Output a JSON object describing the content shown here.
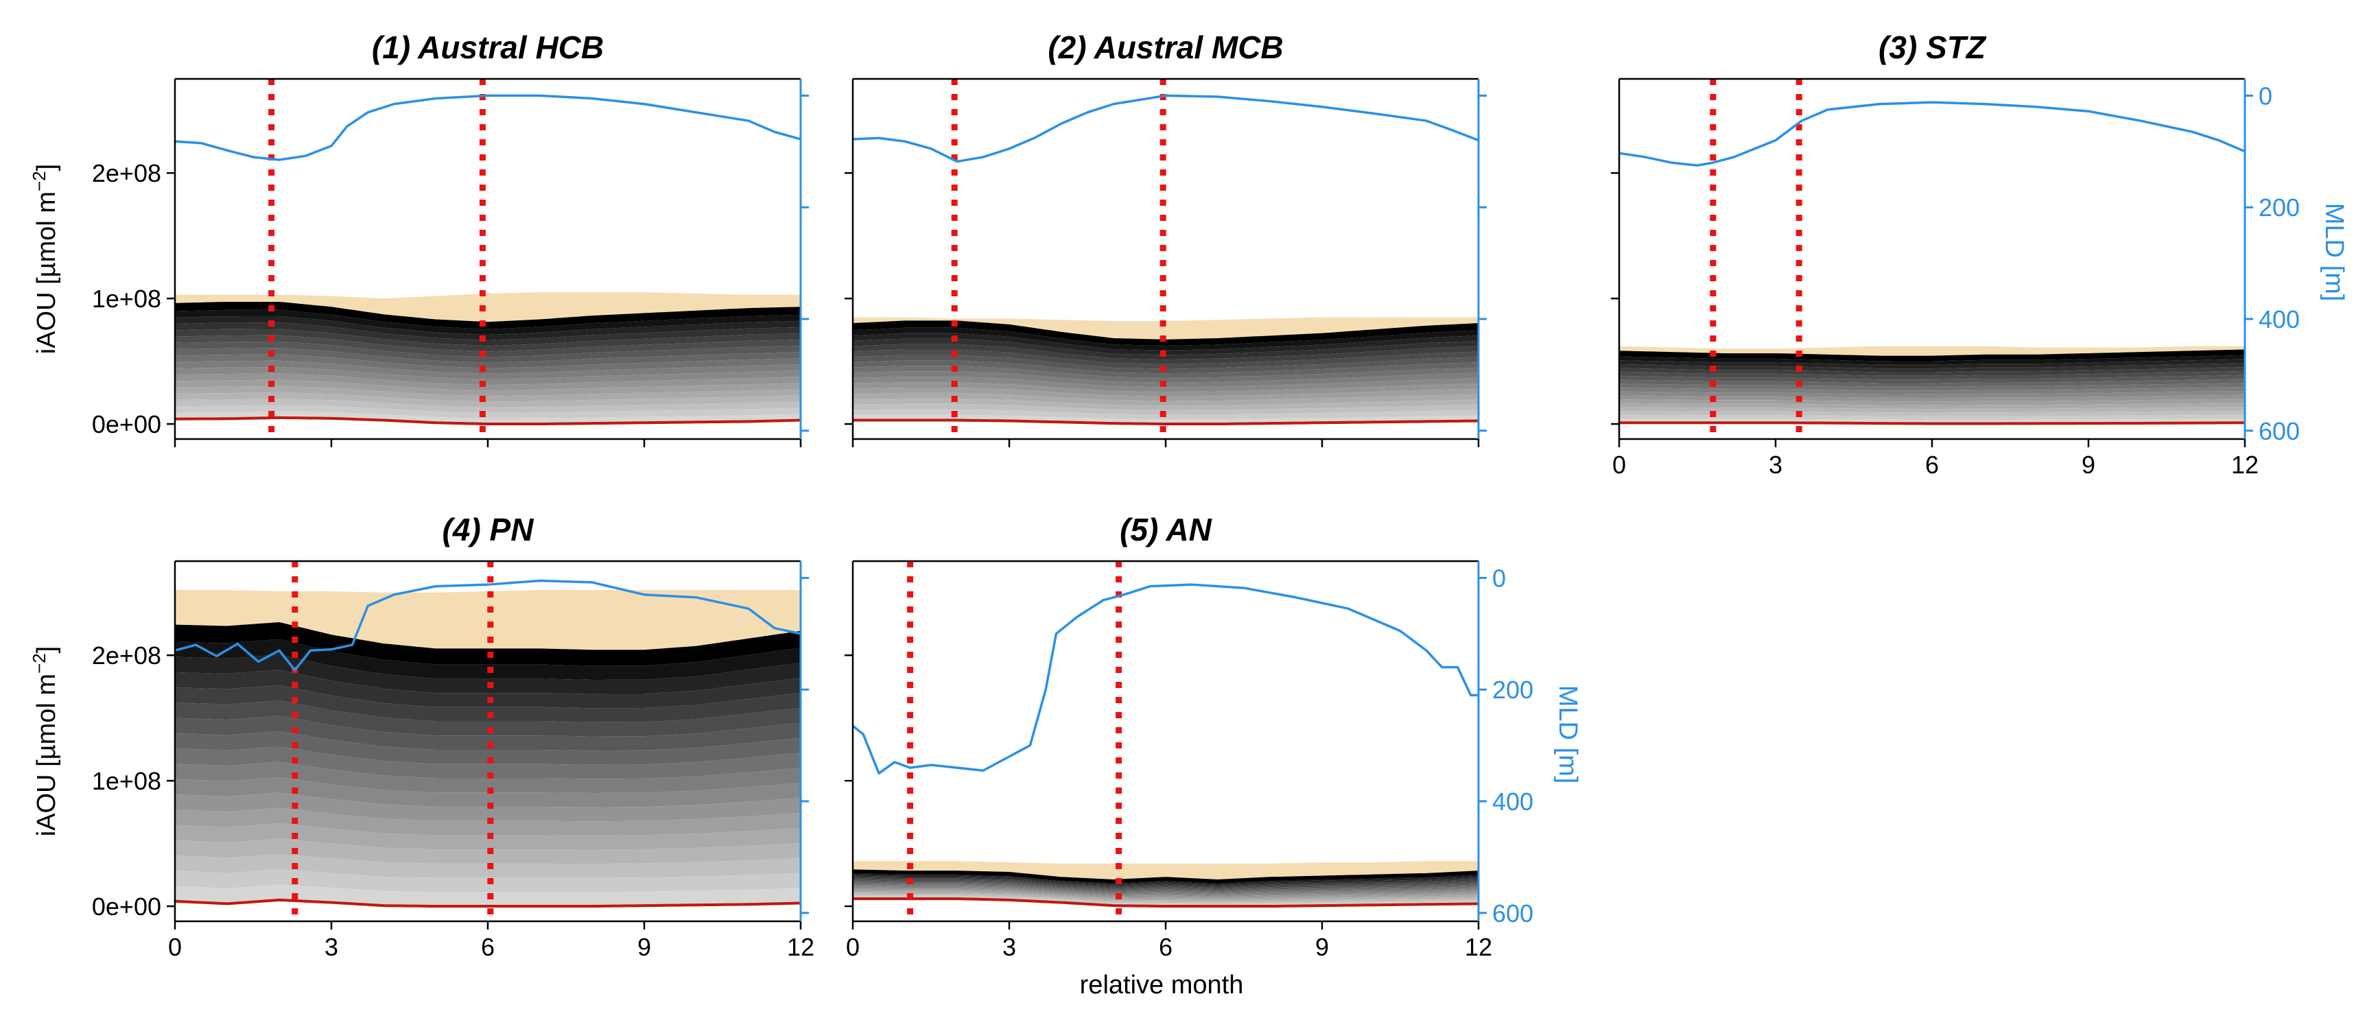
{
  "colors": {
    "mld": "#2b90e6",
    "phases": "#ee1111",
    "envelope": "#f5ddb3",
    "baseline": "#c0190f",
    "stack_dark": "#000000",
    "stack_light": "#d6d6d6",
    "axes": "#000000"
  },
  "figure": {
    "xlabel": "relative month",
    "ylabel_left": "iAOU",
    "ylabel_left_units": "[µmol m",
    "ylabel_left_exp": "−2",
    "ylabel_left_close": "]",
    "ylabel_right": "MLD [m]"
  },
  "chart_data": [
    {
      "type": "area",
      "title": "(1) Austral HCB",
      "xlim": [
        0,
        12
      ],
      "xticks": [
        "0",
        "3",
        "6",
        "9",
        "12"
      ],
      "show_xticklabels": false,
      "ylim": [
        -12000000.0,
        275000000.0
      ],
      "yticks": [
        "0e+00",
        "1e+08",
        "2e+08"
      ],
      "yticks_values": [
        0,
        100000000.0,
        200000000.0
      ],
      "show_yticklabels": true,
      "show_ylabel": true,
      "mld_lim": [
        615,
        -30
      ],
      "mld_ticks": [
        0,
        200,
        400,
        600
      ],
      "show_mld_ticklabels": false,
      "show_mld_label": false,
      "phase_lines": [
        1.85,
        5.9
      ],
      "x": [
        0,
        1,
        2,
        3,
        4,
        5,
        6,
        7,
        8,
        9,
        10,
        11,
        12
      ],
      "envelope": [
        103000000.0,
        103000000.0,
        103000000.0,
        102000000.0,
        100000000.0,
        102000000.0,
        104000000.0,
        105000000.0,
        105000000.0,
        105000000.0,
        104000000.0,
        103000000.0,
        103000000.0
      ],
      "stack_top": [
        95000000.0,
        96000000.0,
        96000000.0,
        92000000.0,
        86000000.0,
        82000000.0,
        80000000.0,
        82000000.0,
        85000000.0,
        87000000.0,
        89000000.0,
        91000000.0,
        92000000.0
      ],
      "baseline": [
        4000000.0,
        4200000.0,
        5000000.0,
        4500000.0,
        3000000.0,
        1000000.0,
        0,
        0,
        500000.0,
        1000000.0,
        1500000.0,
        2000000.0,
        3000000.0
      ],
      "mld_x": [
        0,
        0.5,
        1,
        1.5,
        2,
        2.5,
        3,
        3.3,
        3.7,
        4.2,
        5,
        6,
        7,
        8,
        9,
        10,
        11,
        11.5,
        12
      ],
      "mld": [
        82,
        85,
        98,
        110,
        115,
        108,
        90,
        55,
        30,
        15,
        5,
        0,
        0,
        5,
        15,
        30,
        45,
        65,
        78
      ]
    },
    {
      "type": "area",
      "title": "(2) Austral MCB",
      "xlim": [
        0,
        12
      ],
      "xticks": [
        "0",
        "3",
        "6",
        "9",
        "12"
      ],
      "show_xticklabels": false,
      "ylim": [
        -12000000.0,
        275000000.0
      ],
      "yticks": [
        "0e+00",
        "1e+08",
        "2e+08"
      ],
      "yticks_values": [
        0,
        100000000.0,
        200000000.0
      ],
      "show_yticklabels": false,
      "show_ylabel": false,
      "mld_lim": [
        615,
        -30
      ],
      "mld_ticks": [
        0,
        200,
        400,
        600
      ],
      "show_mld_ticklabels": false,
      "show_mld_label": false,
      "phase_lines": [
        1.95,
        5.95
      ],
      "x": [
        0,
        1,
        2,
        3,
        4,
        5,
        6,
        7,
        8,
        9,
        10,
        11,
        12
      ],
      "envelope": [
        85000000.0,
        85000000.0,
        84000000.0,
        84000000.0,
        83000000.0,
        82000000.0,
        82000000.0,
        83000000.0,
        84000000.0,
        85000000.0,
        85000000.0,
        85000000.0,
        85000000.0
      ],
      "stack_top": [
        79000000.0,
        81000000.0,
        81000000.0,
        78000000.0,
        72000000.0,
        67000000.0,
        66000000.0,
        67000000.0,
        69000000.0,
        71000000.0,
        74000000.0,
        77000000.0,
        79000000.0
      ],
      "baseline": [
        3000000.0,
        3000000.0,
        3000000.0,
        2500000.0,
        1500000.0,
        500000.0,
        0,
        0,
        500000.0,
        1000000.0,
        1500000.0,
        2000000.0,
        2500000.0
      ],
      "mld_x": [
        0,
        0.5,
        1,
        1.5,
        2,
        2.5,
        3,
        3.5,
        4,
        4.5,
        5,
        6,
        7,
        8,
        9,
        10,
        11,
        11.5,
        12
      ],
      "mld": [
        78,
        76,
        82,
        95,
        118,
        110,
        95,
        75,
        50,
        30,
        15,
        0,
        2,
        10,
        20,
        32,
        45,
        62,
        80
      ]
    },
    {
      "type": "area",
      "title": "(3) STZ",
      "xlim": [
        0,
        12
      ],
      "xticks": [
        "0",
        "3",
        "6",
        "9",
        "12"
      ],
      "show_xticklabels": true,
      "ylim": [
        -12000000.0,
        275000000.0
      ],
      "yticks": [
        "0e+00",
        "1e+08",
        "2e+08"
      ],
      "yticks_values": [
        0,
        100000000.0,
        200000000.0
      ],
      "show_yticklabels": false,
      "show_ylabel": false,
      "mld_lim": [
        615,
        -30
      ],
      "mld_ticks": [
        0,
        200,
        400,
        600
      ],
      "show_mld_ticklabels": true,
      "show_mld_label": true,
      "phase_lines": [
        1.8,
        3.45
      ],
      "x": [
        0,
        1,
        2,
        3,
        4,
        5,
        6,
        7,
        8,
        9,
        10,
        11,
        12
      ],
      "envelope": [
        62000000.0,
        61000000.0,
        60000000.0,
        60000000.0,
        61000000.0,
        62000000.0,
        62000000.0,
        62000000.0,
        61000000.0,
        61000000.0,
        61000000.0,
        62000000.0,
        62000000.0
      ],
      "stack_top": [
        57000000.0,
        56000000.0,
        55000000.0,
        55000000.0,
        54000000.0,
        53000000.0,
        53000000.0,
        54000000.0,
        54000000.0,
        55000000.0,
        56000000.0,
        57000000.0,
        58000000.0
      ],
      "baseline": [
        1000000.0,
        1000000.0,
        1000000.0,
        1000000.0,
        800000.0,
        500000.0,
        300000.0,
        300000.0,
        400000.0,
        500000.0,
        600000.0,
        800000.0,
        1000000.0
      ],
      "mld_x": [
        0,
        0.5,
        1,
        1.5,
        1.8,
        2.2,
        2.6,
        3,
        3.5,
        4,
        5,
        6,
        7,
        8,
        9,
        10,
        11,
        11.5,
        12
      ],
      "mld": [
        103,
        110,
        120,
        125,
        120,
        110,
        95,
        80,
        45,
        25,
        15,
        12,
        15,
        20,
        28,
        45,
        65,
        80,
        100
      ]
    },
    {
      "type": "area",
      "title": "(4) PN",
      "xlim": [
        0,
        12
      ],
      "xticks": [
        "0",
        "3",
        "6",
        "9",
        "12"
      ],
      "show_xticklabels": true,
      "ylim": [
        -12000000.0,
        275000000.0
      ],
      "yticks": [
        "0e+00",
        "1e+08",
        "2e+08"
      ],
      "yticks_values": [
        0,
        100000000.0,
        200000000.0
      ],
      "show_yticklabels": true,
      "show_ylabel": true,
      "mld_lim": [
        615,
        -30
      ],
      "mld_ticks": [
        0,
        200,
        400,
        600
      ],
      "show_mld_ticklabels": false,
      "show_mld_label": false,
      "phase_lines": [
        2.3,
        6.05
      ],
      "x": [
        0,
        1,
        2,
        3,
        4,
        5,
        6,
        7,
        8,
        9,
        10,
        11,
        12
      ],
      "envelope": [
        252000000.0,
        252000000.0,
        251000000.0,
        251000000.0,
        250000000.0,
        250000000.0,
        251000000.0,
        252000000.0,
        252000000.0,
        252000000.0,
        252000000.0,
        252000000.0,
        252000000.0
      ],
      "stack_top": [
        223000000.0,
        222000000.0,
        225000000.0,
        215000000.0,
        208000000.0,
        204000000.0,
        204000000.0,
        204000000.0,
        203000000.0,
        203000000.0,
        206000000.0,
        212000000.0,
        218000000.0
      ],
      "baseline": [
        4000000.0,
        2000000.0,
        5000000.0,
        3000000.0,
        500000.0,
        0,
        0,
        0,
        0,
        500000.0,
        1000000.0,
        1500000.0,
        2500000.0
      ],
      "mld_x": [
        0,
        0.4,
        0.8,
        1.2,
        1.6,
        2.0,
        2.3,
        2.6,
        3.0,
        3.4,
        3.7,
        4.2,
        5,
        6,
        7,
        8,
        9,
        10,
        11,
        11.5,
        12
      ],
      "mld": [
        130,
        120,
        140,
        118,
        150,
        130,
        165,
        130,
        128,
        120,
        50,
        30,
        15,
        12,
        5,
        8,
        30,
        35,
        55,
        90,
        100
      ]
    },
    {
      "type": "area",
      "title": "(5) AN",
      "xlim": [
        0,
        12
      ],
      "xticks": [
        "0",
        "3",
        "6",
        "9",
        "12"
      ],
      "show_xticklabels": true,
      "ylim": [
        -12000000.0,
        275000000.0
      ],
      "yticks": [
        "0e+00",
        "1e+08",
        "2e+08"
      ],
      "yticks_values": [
        0,
        100000000.0,
        200000000.0
      ],
      "show_yticklabels": false,
      "show_ylabel": false,
      "mld_lim": [
        615,
        -30
      ],
      "mld_ticks": [
        0,
        200,
        400,
        600
      ],
      "show_mld_ticklabels": true,
      "show_mld_label": true,
      "phase_lines": [
        1.1,
        5.1
      ],
      "x": [
        0,
        1,
        2,
        3,
        4,
        5,
        6,
        7,
        8,
        9,
        10,
        11,
        12
      ],
      "envelope": [
        36000000.0,
        36000000.0,
        36000000.0,
        35000000.0,
        34000000.0,
        34000000.0,
        34000000.0,
        34000000.0,
        34000000.0,
        35000000.0,
        35000000.0,
        36000000.0,
        36000000.0
      ],
      "stack_top": [
        28000000.0,
        27000000.0,
        27000000.0,
        26000000.0,
        22000000.0,
        20000000.0,
        22000000.0,
        20000000.0,
        22000000.0,
        23000000.0,
        24000000.0,
        25000000.0,
        27000000.0
      ],
      "baseline": [
        6000000.0,
        6000000.0,
        6000000.0,
        5000000.0,
        3000000.0,
        500000.0,
        0,
        0,
        0,
        500000.0,
        1000000.0,
        1500000.0,
        2000000.0
      ],
      "mld_x": [
        0,
        0.2,
        0.5,
        0.8,
        1.1,
        1.5,
        2.0,
        2.5,
        3.0,
        3.4,
        3.7,
        3.9,
        4.3,
        4.8,
        5.2,
        5.7,
        6.5,
        7.5,
        8.5,
        9.5,
        10.5,
        11.0,
        11.3,
        11.6,
        11.85,
        12
      ],
      "mld": [
        265,
        280,
        350,
        330,
        340,
        335,
        340,
        345,
        320,
        300,
        200,
        100,
        70,
        40,
        30,
        15,
        12,
        18,
        35,
        55,
        95,
        130,
        160,
        160,
        210,
        210
      ]
    }
  ]
}
